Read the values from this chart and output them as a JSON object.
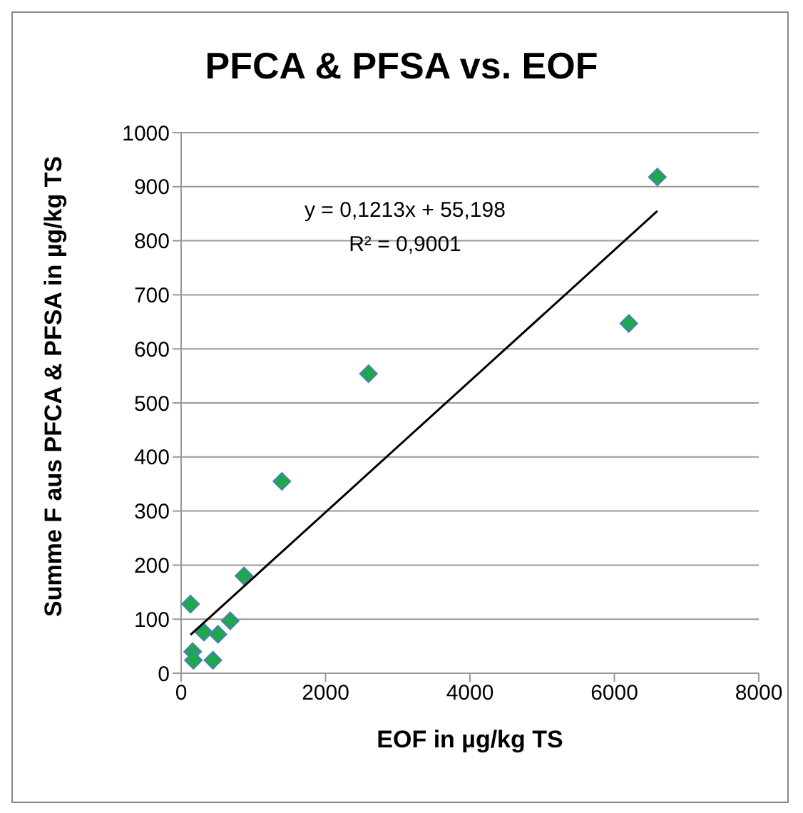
{
  "chart_data": {
    "type": "scatter",
    "title": "PFCA & PFSA vs. EOF",
    "xlabel": "EOF in µg/kg TS",
    "ylabel": "Summe F aus PFCA & PFSA in µg/kg TS",
    "annotations": [
      "y = 0,1213x + 55,198",
      "R² = 0,9001"
    ],
    "series": [
      {
        "marker": "diamond",
        "color": "#1fa84a",
        "x": [
          130,
          160,
          170,
          315,
          440,
          510,
          680,
          870,
          1395,
          2595,
          6200,
          6595
        ],
        "values": [
          128,
          40,
          24,
          76,
          24,
          72,
          97,
          180,
          355,
          554,
          647,
          918
        ]
      },
      {
        "type": "line",
        "marker": "none",
        "color": "#000000",
        "x": [
          130,
          6595
        ],
        "values": [
          71,
          855
        ]
      }
    ],
    "xlim": [
      0,
      8000
    ],
    "xticks": [
      0,
      2000,
      4000,
      6000,
      8000
    ],
    "ylim": [
      0,
      1000
    ],
    "yticks": [
      0,
      100,
      200,
      300,
      400,
      500,
      600,
      700,
      800,
      900,
      1000
    ],
    "grid": "y",
    "legend": false
  }
}
